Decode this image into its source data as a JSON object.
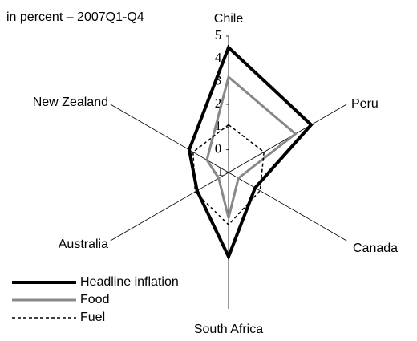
{
  "chart_data": {
    "type": "radar",
    "subtitle": "in percent – 2007Q1-Q4",
    "categories": [
      "Chile",
      "Peru",
      "Canada",
      "South Africa",
      "Australia",
      "New Zealand"
    ],
    "rlim": [
      -1,
      5
    ],
    "rticks": [
      -1,
      0,
      1,
      2,
      3,
      4,
      5
    ],
    "series": [
      {
        "name": "Headline inflation",
        "color": "#000000",
        "dashed": false,
        "values": [
          4.5,
          3.2,
          0.35,
          2.7,
          0.6,
          1.0
        ]
      },
      {
        "name": "Food",
        "color": "#888888",
        "dashed": false,
        "values": [
          3.2,
          2.4,
          -0.5,
          1.0,
          -0.5,
          0.1
        ]
      },
      {
        "name": "Fuel",
        "color": "#000000",
        "dashed": true,
        "values": [
          1.1,
          0.8,
          0.6,
          1.3,
          0.7,
          0.8
        ]
      }
    ]
  }
}
